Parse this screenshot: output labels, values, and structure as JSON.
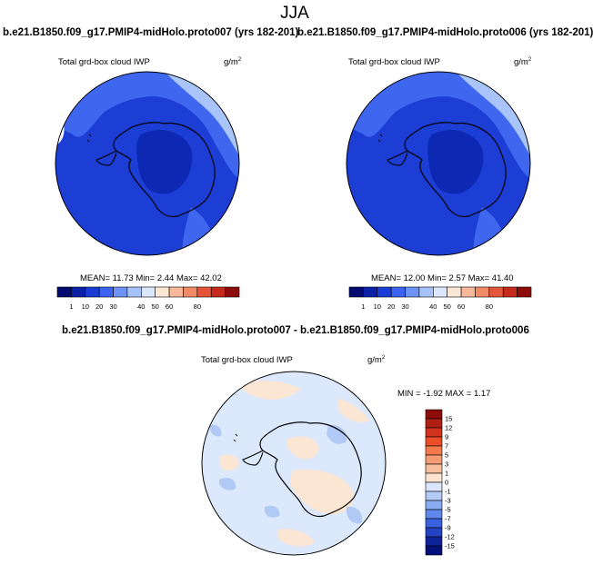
{
  "page_title": "JJA",
  "panels": [
    {
      "title": "b.e21.B1850.f09_g17.PMIP4-midHolo.proto007 (yrs 182-201)",
      "variable": "Total grd-box cloud IWP",
      "units": "g/m",
      "units_sup": "2",
      "stats": "MEAN=  11.73  Min=   2.44  Max=  42.02",
      "colorbar": {
        "labels": [
          "1",
          "10",
          "20",
          "30",
          "40",
          "50",
          "60",
          "80"
        ],
        "colors": [
          "#040a6e",
          "#0c21a8",
          "#1a3cd6",
          "#3b62f0",
          "#6e93f7",
          "#a6c2fb",
          "#dbe7fd",
          "#fce6d4",
          "#f7b99a",
          "#f28a66",
          "#e4553a",
          "#c52a1c",
          "#8e0d0c"
        ]
      }
    },
    {
      "title": "b.e21.B1850.f09_g17.PMIP4-midHolo.proto006 (yrs 182-201)",
      "variable": "Total grd-box cloud IWP",
      "units": "g/m",
      "units_sup": "2",
      "stats": "MEAN=  12.00  Min=   2.57  Max=  41.40",
      "colorbar": {
        "labels": [
          "1",
          "10",
          "20",
          "30",
          "40",
          "50",
          "60",
          "80"
        ],
        "colors": [
          "#040a6e",
          "#0c21a8",
          "#1a3cd6",
          "#3b62f0",
          "#6e93f7",
          "#a6c2fb",
          "#dbe7fd",
          "#fce6d4",
          "#f7b99a",
          "#f28a66",
          "#e4553a",
          "#c52a1c",
          "#8e0d0c"
        ]
      }
    }
  ],
  "diff_panel": {
    "title": "b.e21.B1850.f09_g17.PMIP4-midHolo.proto007 - b.e21.B1850.f09_g17.PMIP4-midHolo.proto006",
    "variable": "Total grd-box cloud IWP",
    "units": "g/m",
    "units_sup": "2",
    "stats": "MIN =  -1.92 MAX =   1.17",
    "colorbar": {
      "labels": [
        "15",
        "12",
        "9",
        "7",
        "5",
        "3",
        "1",
        "0",
        "-1",
        "-3",
        "-5",
        "-7",
        "-9",
        "-12",
        "-15"
      ],
      "colors": [
        "#8e0d0c",
        "#b01f14",
        "#d0321e",
        "#ec4f28",
        "#f47a4c",
        "#f59c76",
        "#f8bf9f",
        "#fde3cf",
        "#d9e6fb",
        "#b2cbf7",
        "#89abf2",
        "#5f87ec",
        "#3a62e0",
        "#2242c4",
        "#0e229a",
        "#05107a"
      ]
    }
  },
  "colors": {
    "map_base": "#1c3ed4",
    "map_deep": "#0d28b3",
    "map_mid": "#3e66ee",
    "map_light": "#a8c4fa",
    "diff_base": "#dce8fb",
    "diff_warm": "#fbe6d4",
    "diff_cool": "#b0c9f5"
  }
}
